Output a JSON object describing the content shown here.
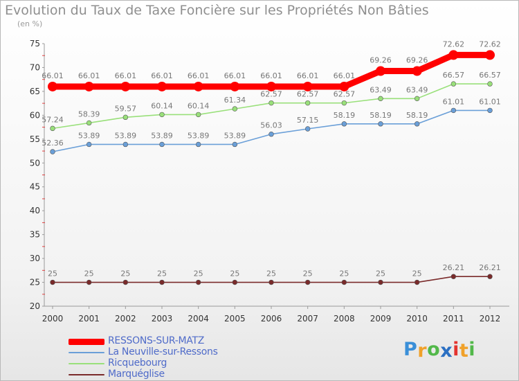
{
  "chart_data": {
    "type": "line",
    "title": "Evolution du Taux de Taxe Foncière sur les Propriétés Non Bâties",
    "ylabel": "(en %)",
    "xlabel": "",
    "x": [
      "2000",
      "2001",
      "2002",
      "2003",
      "2004",
      "2005",
      "2006",
      "2007",
      "2008",
      "2009",
      "2010",
      "2011",
      "2012"
    ],
    "ylim": [
      20,
      75
    ],
    "yticks": [
      "20",
      "25",
      "30",
      "35",
      "40",
      "45",
      "50",
      "55",
      "60",
      "65",
      "70",
      "75"
    ],
    "grid": false,
    "legend_position": "bottom-left",
    "series": [
      {
        "name": "RESSONS-SUR-MATZ",
        "color": "#ff0000",
        "values": [
          66.01,
          66.01,
          66.01,
          66.01,
          66.01,
          66.01,
          66.01,
          66.01,
          66.01,
          69.26,
          69.26,
          72.62,
          72.62
        ],
        "labels": [
          "66.01",
          "66.01",
          "66.01",
          "66.01",
          "66.01",
          "66.01",
          "66.01",
          "66.01",
          "66.01",
          "69.26",
          "69.26",
          "72.62",
          "72.62"
        ]
      },
      {
        "name": "La Neuville-sur-Ressons",
        "color": "#6a9fd8",
        "values": [
          52.36,
          53.89,
          53.89,
          53.89,
          53.89,
          53.89,
          56.03,
          57.15,
          58.19,
          58.19,
          58.19,
          61.01,
          61.01
        ],
        "labels": [
          "52.36",
          "53.89",
          "53.89",
          "53.89",
          "53.89",
          "53.89",
          "56.03",
          "57.15",
          "58.19",
          "58.19",
          "58.19",
          "61.01",
          "61.01"
        ]
      },
      {
        "name": "Ricquebourg",
        "color": "#99e07a",
        "values": [
          57.24,
          58.39,
          59.57,
          60.14,
          60.14,
          61.34,
          62.57,
          62.57,
          62.57,
          63.49,
          63.49,
          66.57,
          66.57
        ],
        "labels": [
          "57.24",
          "58.39",
          "59.57",
          "60.14",
          "60.14",
          "61.34",
          "62.57",
          "62.57",
          "62.57",
          "63.49",
          "63.49",
          "66.57",
          "66.57"
        ]
      },
      {
        "name": "Marquéglise",
        "color": "#7a2a2a",
        "values": [
          25,
          25,
          25,
          25,
          25,
          25,
          25,
          25,
          25,
          25,
          25,
          26.21,
          26.21
        ],
        "labels": [
          "25",
          "25",
          "25",
          "25",
          "25",
          "25",
          "25",
          "25",
          "25",
          "25",
          "25",
          "26.21",
          "26.21"
        ]
      }
    ]
  },
  "brand": {
    "letters": [
      "P",
      "r",
      "o",
      "x",
      "i",
      "t",
      "i"
    ],
    "colors": [
      "#3a8fd8",
      "#f0a12a",
      "#52b84a",
      "#2b6fc2",
      "#e3342f",
      "#f0a12a",
      "#52b84a"
    ]
  }
}
